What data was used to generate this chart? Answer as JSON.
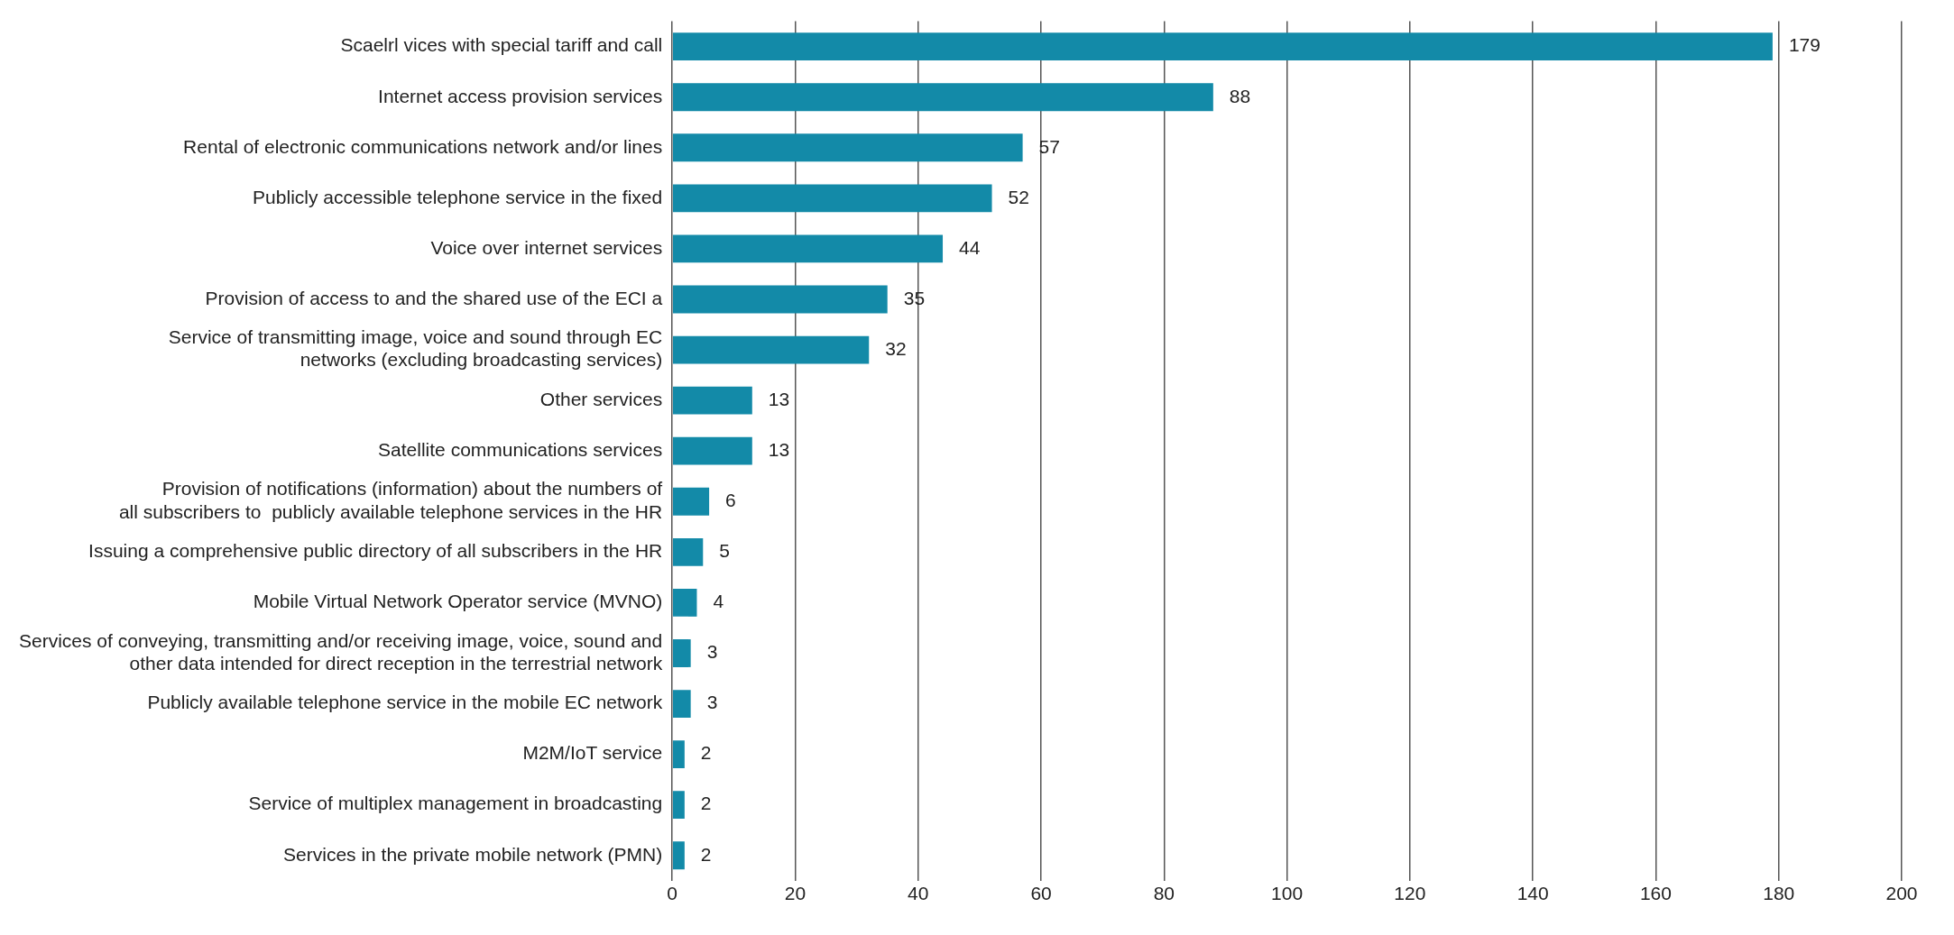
{
  "chart_data": {
    "type": "bar",
    "orientation": "horizontal",
    "categories": [
      "Scaelrl vices with special tariff and call",
      "Internet access provision services",
      "Rental of electronic communications network and/or lines",
      "Publicly accessible telephone service in the fixed",
      "Voice over internet services",
      "Provision of access to and the shared use of the ECI a",
      "Service of transmitting image, voice and sound through EC\nnetworks (excluding broadcasting services)",
      "Other services",
      "Satellite communications services",
      "Provision of notifications (information) about the numbers of\nall subscribers to  publicly available telephone services in the HR",
      "Issuing a comprehensive public directory of all subscribers in the HR",
      "Mobile Virtual Network Operator service (MVNO)",
      "Services of conveying, transmitting and/or receiving image, voice, sound and\nother data intended for direct reception in the terrestrial network",
      "Publicly available telephone service in the mobile EC network",
      "M2M/IoT service",
      "Service of multiplex management in broadcasting",
      "Services in the private mobile network (PMN)"
    ],
    "values": [
      179,
      88,
      57,
      52,
      44,
      35,
      32,
      13,
      13,
      6,
      5,
      4,
      3,
      3,
      2,
      2,
      2
    ],
    "color": "#138aa8",
    "xlim": [
      0,
      200
    ],
    "xticks": [
      0,
      20,
      40,
      60,
      80,
      100,
      120,
      140,
      160,
      180,
      200
    ],
    "grid": "x",
    "data_labels": true,
    "legend": false
  }
}
